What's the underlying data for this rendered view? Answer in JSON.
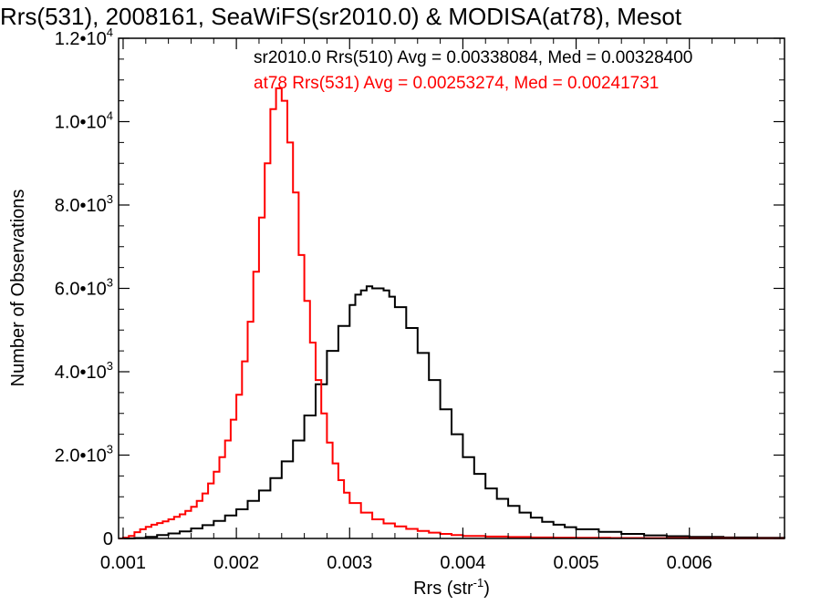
{
  "chart_data": {
    "type": "line",
    "title": "Rrs(531), 2008161, SeaWiFS(sr2010.0) & MODISA(at78), Mesot",
    "xlabel": "Rrs (str",
    "xlabel_sup": "-1",
    "xlabel_close": ")",
    "ylabel": "Number of Observations",
    "xlim": [
      0.00096,
      0.00684
    ],
    "ylim": [
      0,
      12000
    ],
    "xticks": [
      {
        "value": 0.001,
        "label": "0.001"
      },
      {
        "value": 0.002,
        "label": "0.002"
      },
      {
        "value": 0.003,
        "label": "0.003"
      },
      {
        "value": 0.004,
        "label": "0.004"
      },
      {
        "value": 0.005,
        "label": "0.005"
      },
      {
        "value": 0.006,
        "label": "0.006"
      }
    ],
    "yticks": [
      {
        "value": 0,
        "mant": "0",
        "exp": ""
      },
      {
        "value": 2000,
        "mant": "2.0•10",
        "exp": "3"
      },
      {
        "value": 4000,
        "mant": "4.0•10",
        "exp": "3"
      },
      {
        "value": 6000,
        "mant": "6.0•10",
        "exp": "3"
      },
      {
        "value": 8000,
        "mant": "8.0•10",
        "exp": "3"
      },
      {
        "value": 10000,
        "mant": "1.0•10",
        "exp": "4"
      },
      {
        "value": 12000,
        "mant": "1.2•10",
        "exp": "4"
      }
    ],
    "grid": false,
    "legend_position": "top-right",
    "series": [
      {
        "name": "sr2010.0 Rrs(510) Avg = 0.00338084, Med = 0.00328400",
        "color": "#000000",
        "x": [
          0.00096,
          0.0011,
          0.0012,
          0.0013,
          0.0014,
          0.0015,
          0.0016,
          0.0017,
          0.0018,
          0.0019,
          0.002,
          0.0021,
          0.0022,
          0.0023,
          0.0024,
          0.0025,
          0.0026,
          0.0027,
          0.0028,
          0.0029,
          0.003,
          0.00305,
          0.0031,
          0.00315,
          0.0032,
          0.00325,
          0.0033,
          0.00335,
          0.0034,
          0.0035,
          0.0036,
          0.0037,
          0.0038,
          0.0039,
          0.004,
          0.0041,
          0.0042,
          0.0043,
          0.0044,
          0.0045,
          0.0046,
          0.0047,
          0.0048,
          0.0049,
          0.005,
          0.0052,
          0.0054,
          0.0056,
          0.0058,
          0.006,
          0.0063,
          0.0066,
          0.00684
        ],
        "y": [
          0,
          10,
          40,
          80,
          120,
          170,
          240,
          320,
          420,
          550,
          700,
          900,
          1150,
          1450,
          1850,
          2350,
          2950,
          3700,
          4500,
          5100,
          5600,
          5850,
          5950,
          6050,
          6000,
          6000,
          5950,
          5800,
          5550,
          5050,
          4450,
          3800,
          3100,
          2500,
          1950,
          1550,
          1200,
          950,
          780,
          620,
          500,
          400,
          330,
          270,
          220,
          160,
          110,
          75,
          55,
          40,
          25,
          15,
          10
        ]
      },
      {
        "name": "at78 Rrs(531) Avg = 0.00253274, Med = 0.00241731",
        "color": "#ff0000",
        "x": [
          0.00096,
          0.001,
          0.00105,
          0.0011,
          0.00115,
          0.0012,
          0.00125,
          0.0013,
          0.00135,
          0.0014,
          0.00145,
          0.0015,
          0.00155,
          0.0016,
          0.00165,
          0.0017,
          0.00175,
          0.0018,
          0.00185,
          0.0019,
          0.00195,
          0.002,
          0.00205,
          0.0021,
          0.00215,
          0.0022,
          0.00225,
          0.0023,
          0.00235,
          0.0024,
          0.00245,
          0.0025,
          0.00255,
          0.0026,
          0.00265,
          0.0027,
          0.00275,
          0.0028,
          0.00285,
          0.0029,
          0.00295,
          0.003,
          0.0031,
          0.0032,
          0.0033,
          0.0034,
          0.0035,
          0.0036,
          0.0037,
          0.0038,
          0.0039,
          0.004,
          0.0042,
          0.0044,
          0.0046,
          0.0048,
          0.005,
          0.0053,
          0.0056,
          0.006,
          0.0064,
          0.00684
        ],
        "y": [
          0,
          20,
          60,
          150,
          220,
          280,
          330,
          370,
          410,
          460,
          520,
          580,
          660,
          760,
          900,
          1080,
          1320,
          1600,
          1950,
          2350,
          2850,
          3450,
          4250,
          5200,
          6400,
          7700,
          9000,
          10300,
          10800,
          10500,
          9500,
          8300,
          6800,
          5700,
          4700,
          3800,
          3000,
          2300,
          1800,
          1400,
          1100,
          850,
          620,
          460,
          360,
          290,
          230,
          180,
          140,
          110,
          80,
          60,
          45,
          35,
          25,
          20,
          15,
          10,
          8,
          5,
          3,
          2
        ]
      }
    ]
  }
}
